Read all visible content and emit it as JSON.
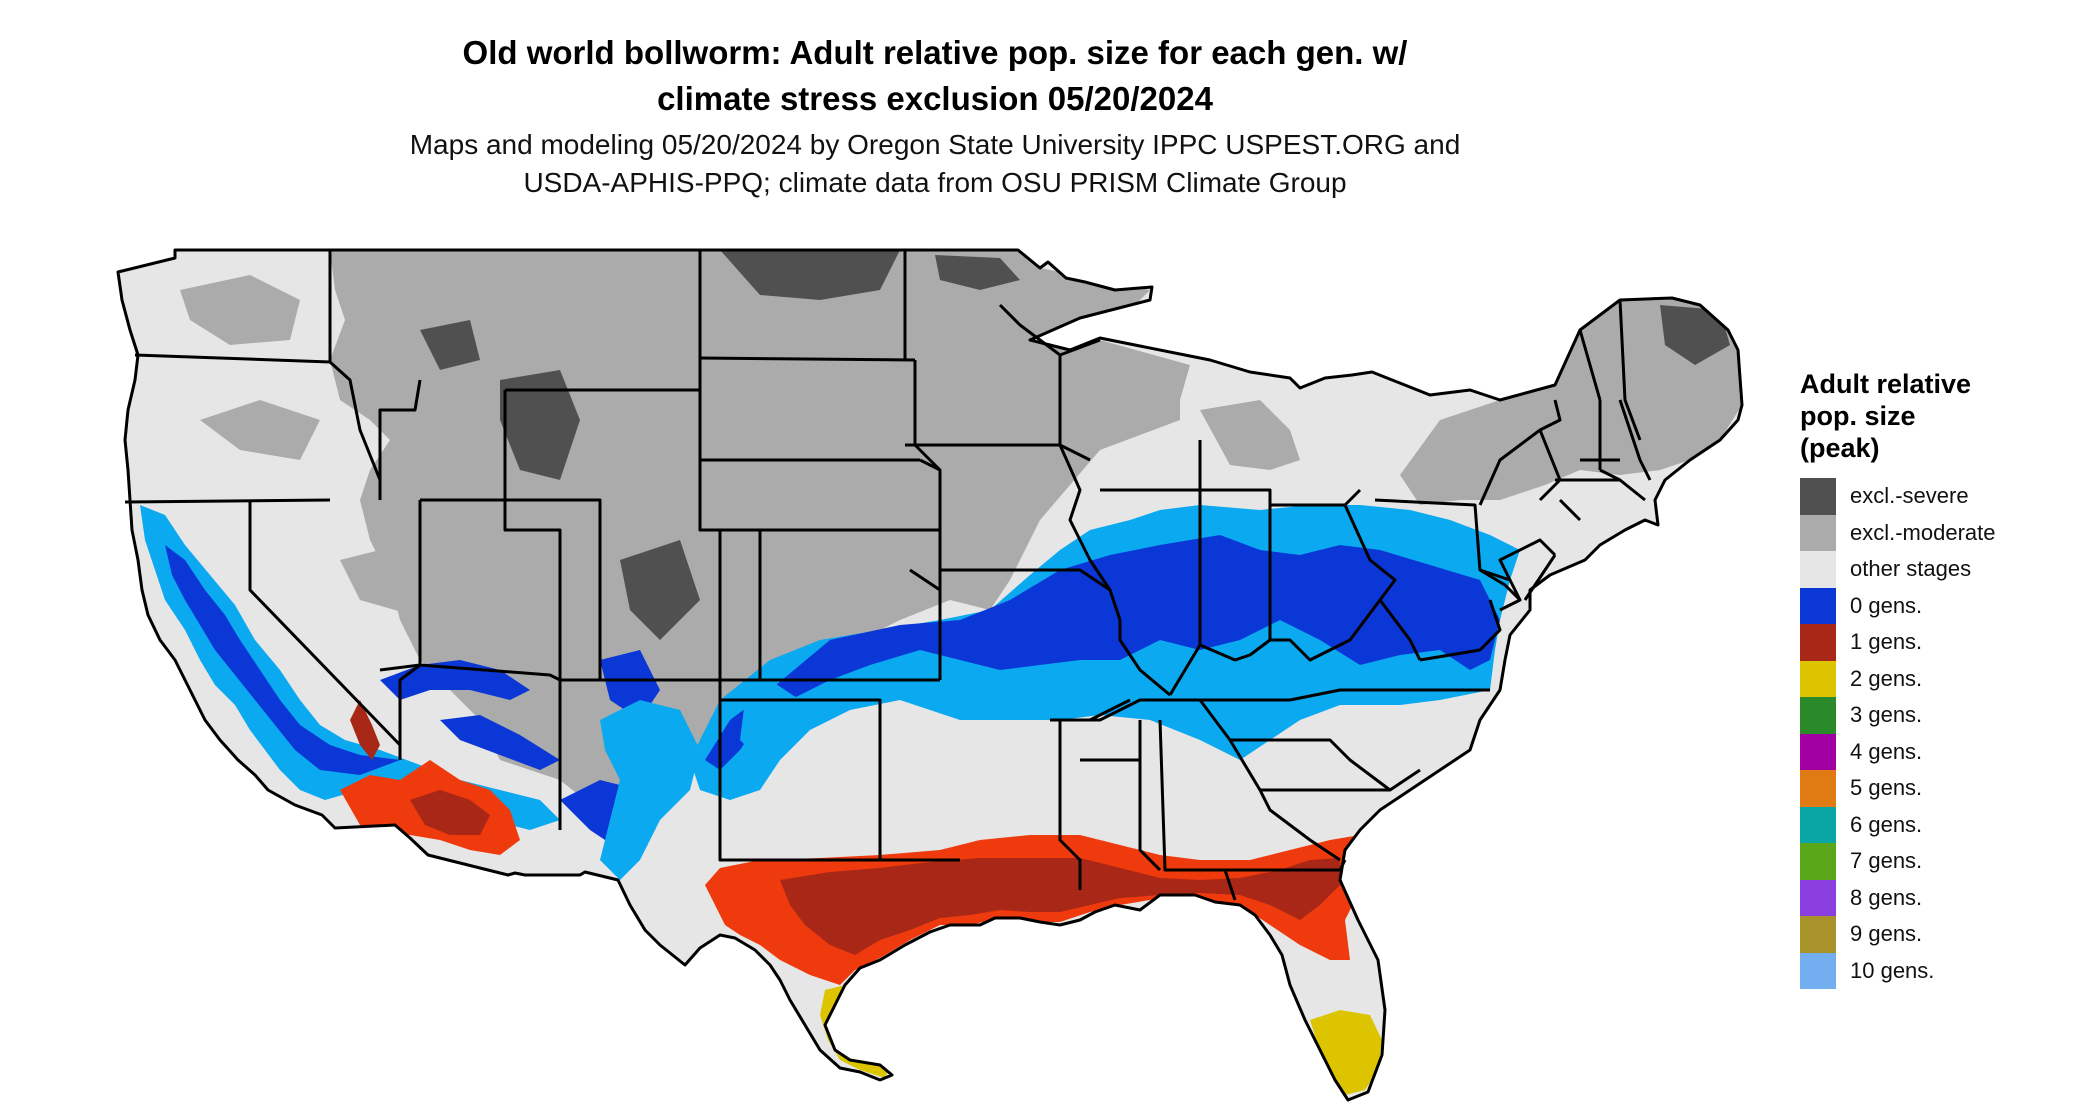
{
  "title": {
    "line1": "Old world bollworm: Adult relative pop. size for each gen. w/",
    "line2": "climate stress exclusion 05/20/2024"
  },
  "subtitle": {
    "line1": "Maps and modeling 05/20/2024 by Oregon State University IPPC USPEST.ORG and",
    "line2": "USDA-APHIS-PPQ; climate data from OSU PRISM Climate Group"
  },
  "legend": {
    "title_line1": "Adult relative",
    "title_line2": "pop. size",
    "title_line3": "(peak)",
    "items": [
      {
        "label": "excl.-severe",
        "color": "#505050"
      },
      {
        "label": "excl.-moderate",
        "color": "#ababab"
      },
      {
        "label": "other stages",
        "color": "#e6e6e6"
      },
      {
        "label": "0 gens.",
        "color": "#0b37d6"
      },
      {
        "label": "1 gens.",
        "color": "#a82716"
      },
      {
        "label": "2 gens.",
        "color": "#dcc500"
      },
      {
        "label": "3 gens.",
        "color": "#2a8a2a"
      },
      {
        "label": "4 gens.",
        "color": "#a300a3"
      },
      {
        "label": "5 gens.",
        "color": "#e07a13"
      },
      {
        "label": "6 gens.",
        "color": "#0aa6a6"
      },
      {
        "label": "7 gens.",
        "color": "#5aa81a"
      },
      {
        "label": "8 gens.",
        "color": "#8c3fe0"
      },
      {
        "label": "9 gens.",
        "color": "#a8922a"
      },
      {
        "label": "10 gens.",
        "color": "#72aef0"
      }
    ]
  }
}
